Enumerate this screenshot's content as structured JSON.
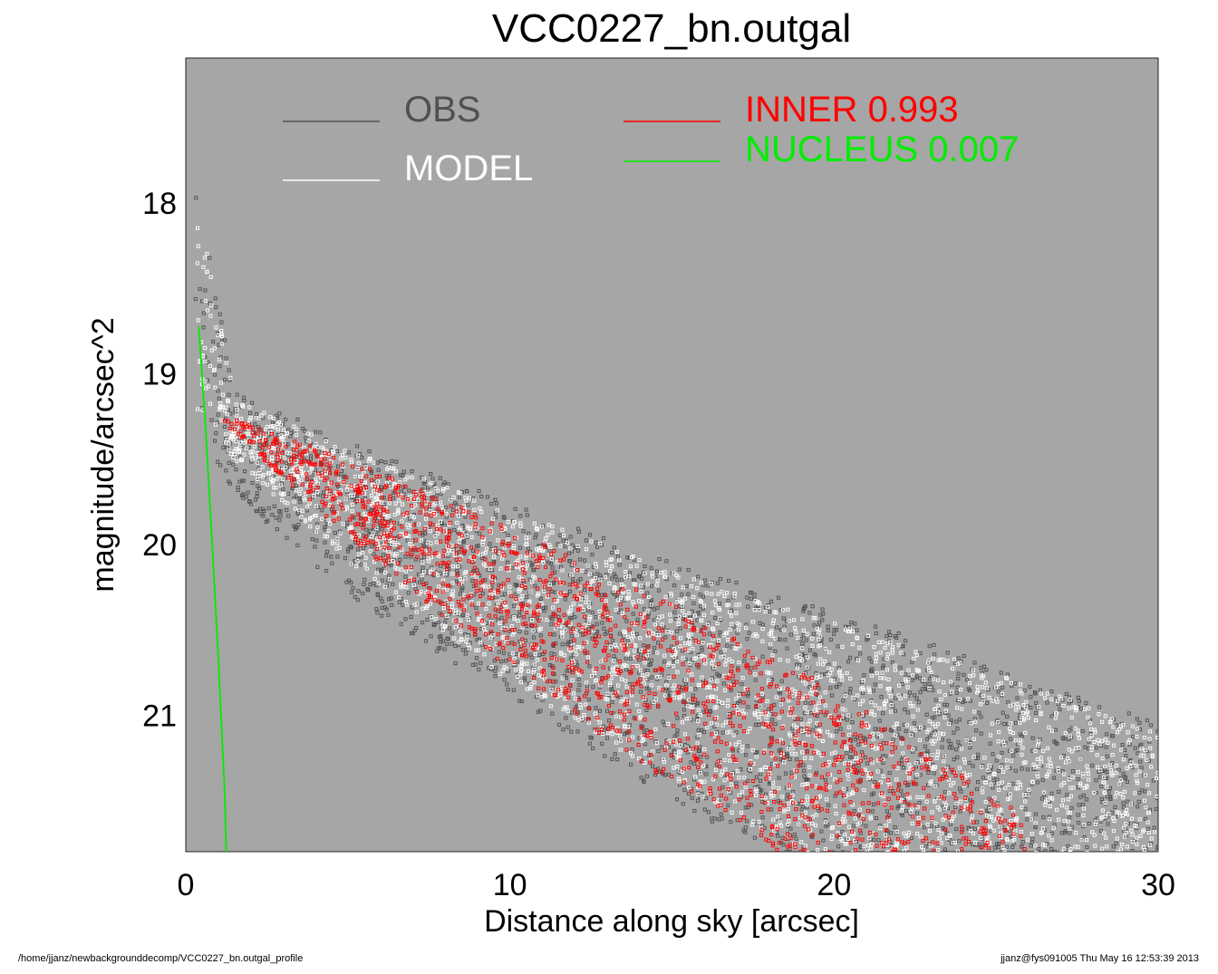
{
  "chart_data": {
    "type": "scatter",
    "title": "VCC0227_bn.outgal",
    "xlabel": "Distance along sky [arcsec]",
    "ylabel": "magnitude/arcsec^2",
    "xlim": [
      0,
      30
    ],
    "ylim": [
      21.8,
      17.15
    ],
    "y_inverted": true,
    "x_ticks": [
      0,
      10,
      20,
      30
    ],
    "y_ticks": [
      18,
      19,
      20,
      21
    ],
    "grid": false,
    "legend_placement": "top",
    "plot_background": "#a6a6a6",
    "legend": [
      {
        "key": "obs",
        "label": "OBS",
        "color": "#505050"
      },
      {
        "key": "model",
        "label": "MODEL",
        "color": "#ffffff"
      },
      {
        "key": "inner",
        "label": "INNER  0.993",
        "color": "#ff0000"
      },
      {
        "key": "nucleus",
        "label": "NUCLEUS  0.007",
        "color": "#00ee00"
      }
    ],
    "series": [
      {
        "name": "OBS",
        "kind": "scatter",
        "color": "#505050",
        "band": {
          "x": [
            0.3,
            1.5,
            5,
            10,
            15,
            20,
            25,
            30
          ],
          "y_upper": [
            17.85,
            19.1,
            19.4,
            19.75,
            20.1,
            20.4,
            20.7,
            21.05
          ],
          "y_lower": [
            19.3,
            19.7,
            20.3,
            20.9,
            21.5,
            22.0,
            22.3,
            22.6
          ]
        }
      },
      {
        "name": "MODEL",
        "kind": "scatter",
        "color": "#ffffff",
        "band": {
          "x": [
            0.3,
            1.5,
            5,
            10,
            15,
            20,
            25,
            30
          ],
          "y_upper": [
            17.9,
            19.15,
            19.45,
            19.8,
            20.15,
            20.45,
            20.75,
            21.1
          ],
          "y_lower": [
            19.2,
            19.5,
            20.1,
            20.8,
            21.4,
            21.9,
            22.2,
            22.5
          ]
        }
      },
      {
        "name": "INNER  0.993",
        "kind": "scatter",
        "color": "#ff0000",
        "band": {
          "x": [
            1.2,
            5,
            10,
            15,
            20,
            26
          ],
          "y_upper": [
            19.25,
            19.5,
            19.9,
            20.35,
            20.85,
            21.6
          ],
          "y_lower": [
            19.3,
            19.95,
            20.75,
            21.4,
            22.0,
            22.5
          ]
        }
      },
      {
        "name": "NUCLEUS  0.007",
        "kind": "line",
        "color": "#00ee00",
        "x": [
          0.4,
          0.6,
          0.8,
          1.0,
          1.2,
          1.25
        ],
        "y": [
          18.72,
          19.28,
          19.95,
          20.65,
          21.45,
          21.8
        ]
      }
    ]
  },
  "footer": {
    "path": "/home/jjanz/newbackgrounddecomp/VCC0227_bn.outgal_profile",
    "stamp": "jjanz@fys091005  Thu May 16 12:53:39 2013"
  }
}
